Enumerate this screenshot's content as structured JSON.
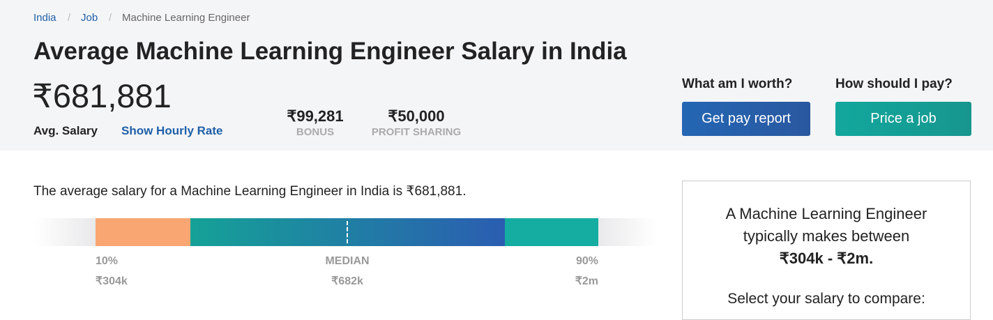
{
  "breadcrumb": [
    "India",
    "Job",
    "Machine Learning Engineer"
  ],
  "header": {
    "title": "Average Machine Learning Engineer Salary in India",
    "avg_salary": "₹681,881",
    "avg_label": "Avg. Salary",
    "hourly_link": "Show Hourly Rate",
    "bonus": {
      "value": "₹99,281",
      "label": "BONUS"
    },
    "profit_sharing": {
      "value": "₹50,000",
      "label": "PROFIT SHARING"
    }
  },
  "actions": [
    {
      "question": "What am I worth?",
      "button": "Get pay report"
    },
    {
      "question": "How should I pay?",
      "button": "Price a job"
    }
  ],
  "summary": "The average salary for a Machine Learning Engineer in India is ₹681,881.",
  "range_bar": {
    "labels": [
      {
        "name": "10%",
        "value": "₹304k"
      },
      {
        "name": "MEDIAN",
        "value": "₹682k"
      },
      {
        "name": "90%",
        "value": "₹2m"
      }
    ]
  },
  "side_box": {
    "intro": "A Machine Learning Engineer typically makes between",
    "range": "₹304k - ₹2m.",
    "prompt": "Select your salary to compare:"
  }
}
